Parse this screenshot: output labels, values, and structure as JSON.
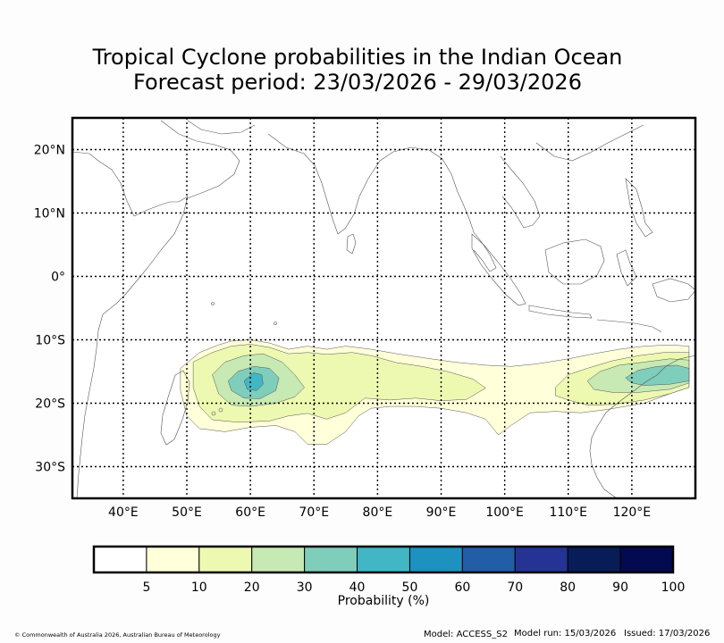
{
  "title": {
    "line1": "Tropical Cyclone probabilities in the Indian Ocean",
    "line2": "Forecast period: 23/03/2026 - 29/03/2026"
  },
  "map": {
    "lon_range": [
      32,
      130
    ],
    "lat_range": [
      -35,
      25
    ],
    "lat_ticks": [
      {
        "value": 20,
        "label": "20°N"
      },
      {
        "value": 10,
        "label": "10°N"
      },
      {
        "value": 0,
        "label": "0°"
      },
      {
        "value": -10,
        "label": "10°S"
      },
      {
        "value": -20,
        "label": "20°S"
      },
      {
        "value": -30,
        "label": "30°S"
      }
    ],
    "lon_ticks": [
      {
        "value": 40,
        "label": "40°E"
      },
      {
        "value": 50,
        "label": "50°E"
      },
      {
        "value": 60,
        "label": "60°E"
      },
      {
        "value": 70,
        "label": "70°E"
      },
      {
        "value": 80,
        "label": "80°E"
      },
      {
        "value": 90,
        "label": "90°E"
      },
      {
        "value": 100,
        "label": "100°E"
      },
      {
        "value": 110,
        "label": "110°E"
      },
      {
        "value": 120,
        "label": "120°E"
      }
    ],
    "probability_regions": [
      {
        "level": 5,
        "color": "#ffffd9",
        "points": [
          [
            49,
            -14.5
          ],
          [
            52,
            -12
          ],
          [
            55,
            -10.8
          ],
          [
            57,
            -10.2
          ],
          [
            60,
            -10
          ],
          [
            63,
            -10.5
          ],
          [
            66,
            -11.5
          ],
          [
            69,
            -11
          ],
          [
            72,
            -11.5
          ],
          [
            75,
            -11
          ],
          [
            79,
            -11.5
          ],
          [
            83,
            -12.2
          ],
          [
            87,
            -12.8
          ],
          [
            92,
            -13.5
          ],
          [
            97,
            -14
          ],
          [
            101,
            -14.2
          ],
          [
            105,
            -13.8
          ],
          [
            110,
            -13
          ],
          [
            114,
            -12.2
          ],
          [
            118,
            -11.5
          ],
          [
            122,
            -11
          ],
          [
            126,
            -10.8
          ],
          [
            129,
            -11
          ],
          [
            129,
            -17.5
          ],
          [
            126,
            -18.5
          ],
          [
            122,
            -20
          ],
          [
            116,
            -21
          ],
          [
            112,
            -21.5
          ],
          [
            108,
            -21.3
          ],
          [
            104,
            -21.5
          ],
          [
            101,
            -23.5
          ],
          [
            99,
            -25
          ],
          [
            97,
            -22.5
          ],
          [
            94,
            -21.5
          ],
          [
            90,
            -20.8
          ],
          [
            86,
            -20.5
          ],
          [
            82,
            -20.5
          ],
          [
            79,
            -20.8
          ],
          [
            77,
            -22
          ],
          [
            75,
            -24.5
          ],
          [
            72,
            -26.5
          ],
          [
            69,
            -26.5
          ],
          [
            67,
            -24.5
          ],
          [
            64,
            -23.5
          ],
          [
            60,
            -23.8
          ],
          [
            56,
            -24.5
          ],
          [
            52,
            -24
          ],
          [
            50,
            -22
          ],
          [
            49,
            -18
          ]
        ]
      },
      {
        "level": 10,
        "color": "#edf8b1",
        "points": [
          [
            51,
            -13.5
          ],
          [
            54,
            -12
          ],
          [
            57,
            -11
          ],
          [
            60,
            -10.7
          ],
          [
            63,
            -11.2
          ],
          [
            66,
            -12.2
          ],
          [
            69,
            -12
          ],
          [
            72,
            -12.3
          ],
          [
            76,
            -12
          ],
          [
            79,
            -12.5
          ],
          [
            83,
            -13.6
          ],
          [
            87,
            -14.2
          ],
          [
            91,
            -15
          ],
          [
            95,
            -16.2
          ],
          [
            97,
            -17.6
          ],
          [
            94,
            -19.4
          ],
          [
            90,
            -19.6
          ],
          [
            86,
            -19.2
          ],
          [
            82,
            -19.5
          ],
          [
            78,
            -19.2
          ],
          [
            75,
            -21.5
          ],
          [
            72,
            -22.5
          ],
          [
            69,
            -21.6
          ],
          [
            66,
            -22
          ],
          [
            63,
            -22.8
          ],
          [
            58,
            -23
          ],
          [
            54,
            -22.6
          ],
          [
            52,
            -20.5
          ],
          [
            51,
            -17.5
          ]
        ]
      },
      {
        "level": 10,
        "color": "#edf8b1",
        "points": [
          [
            108,
            -17.5
          ],
          [
            110,
            -15.5
          ],
          [
            113,
            -14.5
          ],
          [
            117,
            -13.3
          ],
          [
            121,
            -12.5
          ],
          [
            125,
            -12
          ],
          [
            129,
            -12
          ],
          [
            129,
            -17.5
          ],
          [
            126,
            -18.5
          ],
          [
            122,
            -19.5
          ],
          [
            117,
            -20.2
          ],
          [
            113,
            -20.3
          ],
          [
            110,
            -19.5
          ],
          [
            108,
            -18.8
          ]
        ]
      },
      {
        "level": 20,
        "color": "#c7e9b4",
        "points": [
          [
            54,
            -15.5
          ],
          [
            56,
            -13.5
          ],
          [
            59,
            -12.5
          ],
          [
            62,
            -12.2
          ],
          [
            65,
            -13.5
          ],
          [
            67,
            -15.5
          ],
          [
            68.5,
            -17.5
          ],
          [
            67,
            -19
          ],
          [
            64,
            -20
          ],
          [
            60,
            -20.5
          ],
          [
            57,
            -20.3
          ],
          [
            55,
            -18.5
          ]
        ]
      },
      {
        "level": 20,
        "color": "#c7e9b4",
        "points": [
          [
            113,
            -16.5
          ],
          [
            115,
            -15
          ],
          [
            118,
            -14
          ],
          [
            122,
            -13.5
          ],
          [
            126,
            -13
          ],
          [
            129,
            -13.2
          ],
          [
            129,
            -16.8
          ],
          [
            126,
            -17.8
          ],
          [
            121,
            -18.3
          ],
          [
            117,
            -18.3
          ],
          [
            114,
            -17.8
          ]
        ]
      },
      {
        "level": 30,
        "color": "#7fcdbb",
        "points": [
          [
            56.5,
            -16.5
          ],
          [
            58,
            -15
          ],
          [
            60.5,
            -14.2
          ],
          [
            63,
            -14.5
          ],
          [
            64.5,
            -16
          ],
          [
            64,
            -18
          ],
          [
            61.5,
            -19.3
          ],
          [
            59,
            -19.2
          ],
          [
            57,
            -18
          ]
        ]
      },
      {
        "level": 30,
        "color": "#7fcdbb",
        "points": [
          [
            119,
            -16
          ],
          [
            121,
            -14.8
          ],
          [
            124,
            -14.2
          ],
          [
            127,
            -14
          ],
          [
            129,
            -14.5
          ],
          [
            129,
            -16.5
          ],
          [
            126,
            -17
          ],
          [
            122,
            -17.2
          ],
          [
            120,
            -16.8
          ]
        ]
      },
      {
        "level": 40,
        "color": "#41b6c4",
        "points": [
          [
            59,
            -16.5
          ],
          [
            60.5,
            -15.2
          ],
          [
            61.8,
            -15.5
          ],
          [
            62,
            -17
          ],
          [
            61,
            -18
          ],
          [
            59.5,
            -17.8
          ]
        ]
      }
    ]
  },
  "colorbar": {
    "colors": [
      "#ffffff",
      "#ffffd9",
      "#edf8b1",
      "#c7e9b4",
      "#7fcdbb",
      "#41b6c4",
      "#1d91c0",
      "#225ea8",
      "#253494",
      "#081d58",
      "#030a4f"
    ],
    "labels": [
      "5",
      "10",
      "20",
      "30",
      "40",
      "50",
      "60",
      "70",
      "80",
      "90",
      "100"
    ],
    "title": "Probability (%)"
  },
  "footer": {
    "copyright": "© Commonwealth of Australia 2026, Australian Bureau of Meteorology",
    "model": "Model: ACCESS_S2",
    "model_run": "Model run: 15/03/2026",
    "issued": "Issued: 17/03/2026"
  }
}
